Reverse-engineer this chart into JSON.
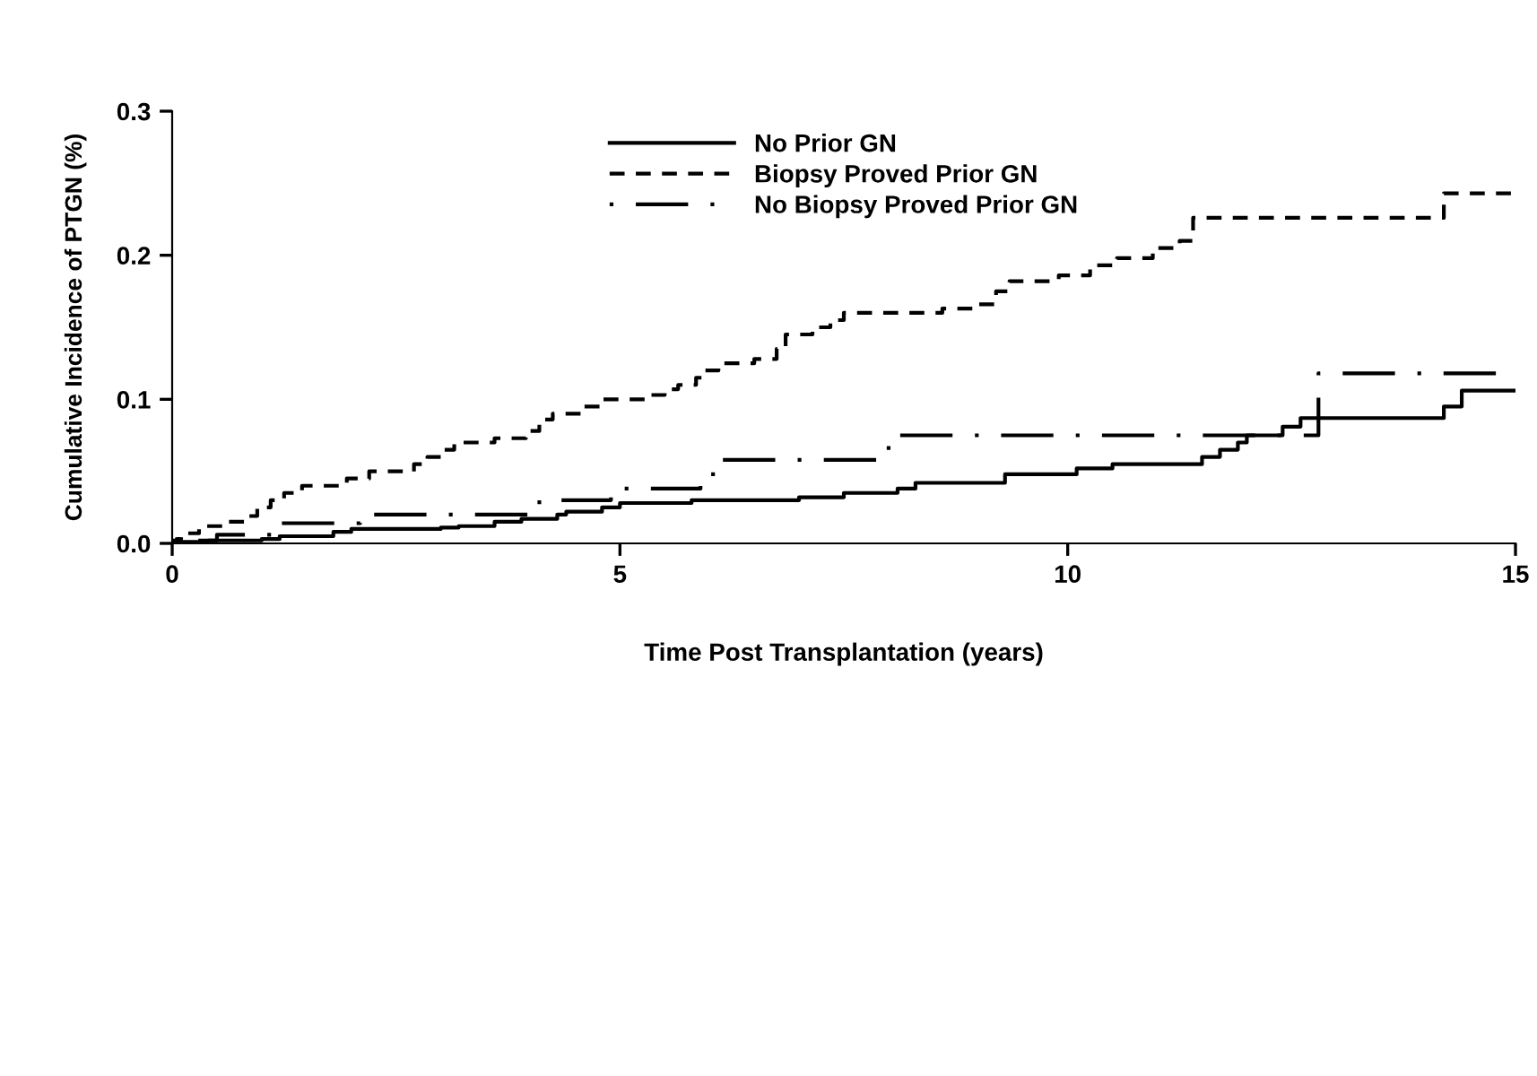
{
  "chart_data": {
    "type": "step",
    "xlabel": "Time Post Transplantation (years)",
    "ylabel": "Cumulative Incidence of PTGN (%)",
    "xlim": [
      0,
      15
    ],
    "ylim": [
      0,
      0.3
    ],
    "xticks": [
      0,
      5,
      10,
      15
    ],
    "yticks": [
      {
        "value": 0,
        "label": "0.0"
      },
      {
        "value": 0.1,
        "label": "0.1"
      },
      {
        "value": 0.2,
        "label": "0.2"
      },
      {
        "value": 0.3,
        "label": "0.3"
      }
    ],
    "grid": false,
    "legend": "top",
    "series": [
      {
        "name": "No Prior GN",
        "color": "#000000",
        "line_style": "solid",
        "x": [
          0,
          0.4,
          1.0,
          1.2,
          1.8,
          2.0,
          3.0,
          3.2,
          3.6,
          3.9,
          4.3,
          4.4,
          4.8,
          5.0,
          5.8,
          7.0,
          7.5,
          8.1,
          8.3,
          9.3,
          10.1,
          10.5,
          11.5,
          11.7,
          11.9,
          12.0,
          12.4,
          12.6,
          14.2,
          14.4,
          15
        ],
        "values": [
          0.001,
          0.002,
          0.003,
          0.005,
          0.008,
          0.01,
          0.011,
          0.012,
          0.015,
          0.017,
          0.02,
          0.022,
          0.025,
          0.028,
          0.03,
          0.032,
          0.035,
          0.038,
          0.042,
          0.048,
          0.052,
          0.055,
          0.06,
          0.065,
          0.07,
          0.075,
          0.081,
          0.087,
          0.095,
          0.106,
          0.106
        ]
      },
      {
        "name": "Biopsy Proved Prior GN",
        "color": "#000000",
        "line_style": "dashed",
        "x": [
          0,
          0.05,
          0.1,
          0.3,
          0.6,
          0.85,
          0.95,
          1.1,
          1.25,
          1.45,
          1.95,
          2.2,
          2.7,
          2.85,
          3.0,
          3.15,
          3.6,
          3.95,
          4.1,
          4.25,
          4.6,
          4.8,
          5.3,
          5.5,
          5.65,
          5.85,
          5.95,
          6.1,
          6.5,
          6.75,
          6.85,
          7.15,
          7.35,
          7.5,
          8.6,
          8.95,
          9.2,
          9.35,
          9.9,
          10.25,
          10.55,
          10.95,
          11.25,
          11.4,
          14.2,
          15
        ],
        "values": [
          0.0,
          0.003,
          0.007,
          0.012,
          0.015,
          0.019,
          0.025,
          0.03,
          0.035,
          0.04,
          0.045,
          0.05,
          0.055,
          0.06,
          0.065,
          0.07,
          0.073,
          0.078,
          0.086,
          0.09,
          0.095,
          0.1,
          0.103,
          0.107,
          0.11,
          0.115,
          0.12,
          0.125,
          0.128,
          0.135,
          0.145,
          0.15,
          0.155,
          0.16,
          0.163,
          0.166,
          0.175,
          0.182,
          0.186,
          0.193,
          0.198,
          0.205,
          0.21,
          0.226,
          0.243,
          0.243
        ]
      },
      {
        "name": "No Biopsy Proved Prior GN",
        "color": "#000000",
        "line_style": "dashdot",
        "x": [
          0,
          0.5,
          1.2,
          2.1,
          4.1,
          4.9,
          5.9,
          6.1,
          8.0,
          12.8,
          15
        ],
        "values": [
          0.002,
          0.006,
          0.014,
          0.02,
          0.03,
          0.038,
          0.048,
          0.058,
          0.075,
          0.118,
          0.118
        ]
      }
    ]
  }
}
